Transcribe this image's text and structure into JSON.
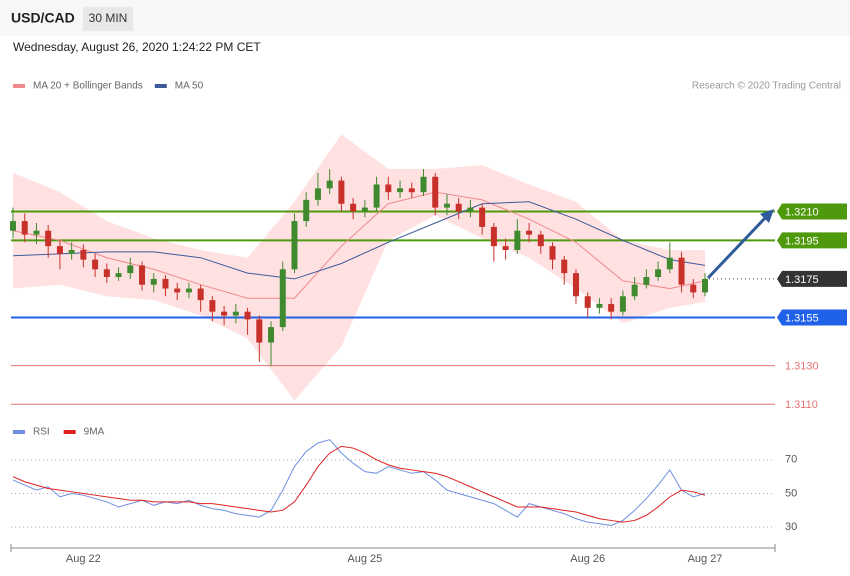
{
  "chart_data": {
    "type": "candlestick",
    "symbol": "USD/CAD",
    "timeframe": "30 MIN",
    "datetime": "Wednesday, August 26, 2020 1:24:22 PM CET",
    "credit": "Research © 2020 Trading Central",
    "categories": [
      null,
      null,
      null,
      null,
      null,
      null,
      "Aug 22",
      null,
      null,
      null,
      null,
      null,
      null,
      null,
      null,
      null,
      null,
      null,
      null,
      null,
      null,
      null,
      null,
      null,
      null,
      null,
      null,
      null,
      null,
      null,
      "Aug 25",
      null,
      null,
      null,
      null,
      null,
      null,
      null,
      null,
      null,
      null,
      null,
      null,
      null,
      null,
      null,
      null,
      null,
      null,
      "Aug 26",
      null,
      null,
      null,
      null,
      null,
      null,
      null,
      null,
      null,
      "Aug 27"
    ],
    "open": [
      1.32,
      1.3205,
      1.3198,
      1.32,
      1.3192,
      1.3188,
      1.319,
      1.3185,
      1.318,
      1.3176,
      1.3178,
      1.3182,
      1.3172,
      1.3175,
      1.317,
      1.3168,
      1.317,
      1.3164,
      1.3158,
      1.3156,
      1.3158,
      1.3154,
      1.3142,
      1.315,
      1.318,
      1.3205,
      1.3216,
      1.3222,
      1.3226,
      1.3214,
      1.321,
      1.3212,
      1.3224,
      1.322,
      1.3222,
      1.322,
      1.3228,
      1.3212,
      1.3214,
      1.321,
      1.3212,
      1.3202,
      1.3192,
      1.319,
      1.32,
      1.3198,
      1.3192,
      1.3185,
      1.3178,
      1.3166,
      1.316,
      1.3162,
      1.3158,
      1.3166,
      1.3172,
      1.3176,
      1.318,
      1.3186,
      1.3172,
      1.3168
    ],
    "high": [
      1.3212,
      1.3209,
      1.3204,
      1.3203,
      1.3195,
      1.3194,
      1.3193,
      1.3188,
      1.3183,
      1.3181,
      1.3186,
      1.3184,
      1.3178,
      1.3177,
      1.3173,
      1.3173,
      1.3172,
      1.3166,
      1.3161,
      1.3162,
      1.316,
      1.3156,
      1.3153,
      1.3184,
      1.3209,
      1.322,
      1.323,
      1.3232,
      1.3228,
      1.3217,
      1.3216,
      1.3228,
      1.3228,
      1.3226,
      1.3225,
      1.3232,
      1.323,
      1.3219,
      1.3217,
      1.3216,
      1.3214,
      1.3204,
      1.3196,
      1.3206,
      1.3204,
      1.32,
      1.3194,
      1.3187,
      1.318,
      1.3168,
      1.3165,
      1.3165,
      1.3169,
      1.3176,
      1.318,
      1.3184,
      1.3194,
      1.3189,
      1.3175,
      1.3178
    ],
    "low": [
      1.3196,
      1.3194,
      1.3193,
      1.3186,
      1.318,
      1.3185,
      1.3181,
      1.3176,
      1.3173,
      1.3174,
      1.3175,
      1.3169,
      1.3168,
      1.3166,
      1.3164,
      1.3165,
      1.3158,
      1.3153,
      1.3151,
      1.3152,
      1.3146,
      1.3132,
      1.313,
      1.3148,
      1.3178,
      1.3202,
      1.3213,
      1.3219,
      1.321,
      1.3206,
      1.3207,
      1.321,
      1.3216,
      1.3217,
      1.3217,
      1.3218,
      1.3208,
      1.3208,
      1.3206,
      1.3207,
      1.3198,
      1.3184,
      1.3185,
      1.3188,
      1.3194,
      1.3188,
      1.318,
      1.3172,
      1.3162,
      1.3155,
      1.3157,
      1.3154,
      1.3156,
      1.3164,
      1.317,
      1.3174,
      1.3178,
      1.3168,
      1.3165,
      1.3166
    ],
    "close": [
      1.3205,
      1.3198,
      1.32,
      1.3192,
      1.3188,
      1.319,
      1.3185,
      1.318,
      1.3176,
      1.3178,
      1.3182,
      1.3172,
      1.3175,
      1.317,
      1.3168,
      1.317,
      1.3164,
      1.3158,
      1.3156,
      1.3158,
      1.3154,
      1.3142,
      1.315,
      1.318,
      1.3205,
      1.3216,
      1.3222,
      1.3226,
      1.3214,
      1.321,
      1.3212,
      1.3224,
      1.322,
      1.3222,
      1.322,
      1.3228,
      1.3212,
      1.3214,
      1.321,
      1.3212,
      1.3202,
      1.3192,
      1.319,
      1.32,
      1.3198,
      1.3192,
      1.3185,
      1.3178,
      1.3166,
      1.316,
      1.3162,
      1.3158,
      1.3166,
      1.3172,
      1.3176,
      1.318,
      1.3186,
      1.3172,
      1.3168,
      1.3175
    ],
    "up_color": "#3f8a2e",
    "down_color": "#c8302a",
    "ylim": [
      1.3107,
      1.3273
    ],
    "overlay_x": [
      0,
      4,
      8,
      12,
      16,
      20,
      24,
      28,
      32,
      36,
      40,
      44,
      48,
      52,
      56,
      59
    ],
    "overlays": [
      {
        "name": "MA 20 + Bollinger Bands",
        "color": "#f08a8a",
        "band_color": "#ffe1e1",
        "values": [
          1.32,
          1.3195,
          1.3186,
          1.318,
          1.3172,
          1.3165,
          1.3165,
          1.3192,
          1.3214,
          1.322,
          1.3216,
          1.3206,
          1.3194,
          1.3174,
          1.317,
          1.3174
        ],
        "upper": [
          1.323,
          1.322,
          1.3205,
          1.3196,
          1.319,
          1.3186,
          1.3215,
          1.325,
          1.3232,
          1.3232,
          1.3234,
          1.3224,
          1.3215,
          1.3195,
          1.319,
          1.319
        ],
        "lower": [
          1.317,
          1.3172,
          1.3166,
          1.3164,
          1.3156,
          1.3144,
          1.3112,
          1.314,
          1.3195,
          1.3208,
          1.3196,
          1.3186,
          1.317,
          1.3152,
          1.316,
          1.3163
        ]
      },
      {
        "name": "MA 50",
        "color": "#3d5a9a",
        "values": [
          1.3187,
          1.3188,
          1.3189,
          1.3189,
          1.3186,
          1.3178,
          1.3175,
          1.3183,
          1.3194,
          1.3204,
          1.3214,
          1.3215,
          1.3206,
          1.3195,
          1.3185,
          1.3182
        ]
      }
    ],
    "levels": [
      {
        "value": 1.321,
        "label": "1.3210",
        "color": "#4f9a0c",
        "style": "tag"
      },
      {
        "value": 1.3195,
        "label": "1.3195",
        "color": "#4f9a0c",
        "style": "tag"
      },
      {
        "value": 1.3175,
        "label": "1.3175",
        "color": "#333333",
        "style": "current"
      },
      {
        "value": 1.3155,
        "label": "1.3155",
        "color": "#1f62e8",
        "style": "tag"
      },
      {
        "value": 1.313,
        "label": "1.3130",
        "color": "#e57373",
        "style": "text"
      },
      {
        "value": 1.311,
        "label": "1.3110",
        "color": "#e57373",
        "style": "text"
      }
    ],
    "rsi": {
      "ylim": [
        20,
        80
      ],
      "yticks": [
        30,
        50,
        70
      ],
      "grid": true,
      "series": [
        {
          "name": "RSI",
          "color": "#6f8fe0",
          "values": [
            58,
            55,
            52,
            54,
            48,
            50,
            49,
            47,
            45,
            42,
            44,
            46,
            43,
            45,
            44,
            46,
            43,
            41,
            40,
            38,
            37,
            36,
            40,
            52,
            66,
            75,
            80,
            82,
            74,
            68,
            63,
            62,
            66,
            64,
            62,
            63,
            58,
            52,
            50,
            48,
            46,
            44,
            40,
            36,
            44,
            42,
            40,
            38,
            35,
            33,
            32,
            31,
            34,
            40,
            47,
            55,
            64,
            52,
            48,
            50
          ]
        },
        {
          "name": "9MA",
          "color": "#e02020",
          "values": [
            60,
            57,
            55,
            53,
            52,
            51,
            50,
            49,
            48,
            47,
            46,
            46,
            45,
            45,
            45,
            45,
            44,
            44,
            43,
            42,
            41,
            40,
            39,
            40,
            45,
            55,
            66,
            74,
            78,
            77,
            74,
            70,
            67,
            65,
            64,
            63,
            62,
            60,
            57,
            54,
            51,
            48,
            45,
            42,
            42,
            42,
            41,
            40,
            39,
            37,
            35,
            34,
            33,
            34,
            37,
            42,
            48,
            52,
            51,
            49
          ]
        }
      ]
    }
  }
}
